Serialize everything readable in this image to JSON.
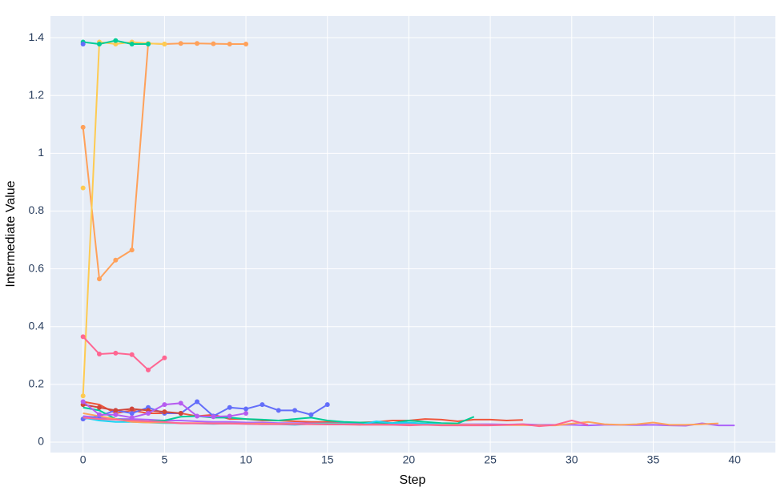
{
  "chart_data": {
    "type": "line",
    "x_label": "Step",
    "y_label": "Intermediate Value",
    "xlim": [
      -2,
      42.5
    ],
    "ylim": [
      -0.036,
      1.475
    ],
    "xticks": [
      0,
      5,
      10,
      15,
      20,
      25,
      30,
      35,
      40
    ],
    "yticks": [
      0,
      0.2,
      0.4,
      0.6,
      0.8,
      1,
      1.2,
      1.4
    ],
    "grid": true,
    "background": "#e5ecf6",
    "series": [
      {
        "color": "#FFA15A",
        "x": [
          0,
          1,
          2,
          3,
          4,
          5,
          6,
          7,
          8,
          9,
          10
        ],
        "values": [
          1.09,
          0.565,
          0.63,
          0.665,
          1.38,
          1.378,
          1.38,
          1.38,
          1.379,
          1.378,
          1.378
        ]
      },
      {
        "color": "#FECB52",
        "x": [
          0,
          1,
          2,
          3,
          4,
          5
        ],
        "values": [
          0.16,
          1.385,
          1.378,
          1.385,
          1.38,
          1.378
        ]
      },
      {
        "color": "#FECB52",
        "x": [
          0
        ],
        "values": [
          0.88
        ]
      },
      {
        "color": "#00cc96",
        "x": [
          0,
          1,
          2,
          3,
          4
        ],
        "values": [
          1.385,
          1.378,
          1.39,
          1.378,
          1.378
        ]
      },
      {
        "color": "#636efa",
        "x": [
          0
        ],
        "values": [
          1.378
        ]
      },
      {
        "color": "#FF6692",
        "x": [
          0,
          1,
          2,
          3,
          4,
          5
        ],
        "values": [
          0.365,
          0.305,
          0.308,
          0.303,
          0.25,
          0.292
        ]
      },
      {
        "color": "#EF553B",
        "x": [
          0,
          1,
          2,
          3,
          4,
          5,
          6,
          7,
          8,
          9,
          10,
          11,
          12,
          13,
          14,
          15,
          16,
          17,
          18,
          19,
          20,
          21,
          22,
          23,
          24,
          25,
          26,
          27
        ],
        "values": [
          0.14,
          0.13,
          0.1,
          0.11,
          0.1,
          0.1,
          0.1,
          0.09,
          0.095,
          0.08,
          0.08,
          0.075,
          0.075,
          0.072,
          0.07,
          0.07,
          0.068,
          0.068,
          0.07,
          0.075,
          0.075,
          0.08,
          0.078,
          0.072,
          0.078,
          0.078,
          0.075,
          0.077
        ]
      },
      {
        "color": "#ab63fa",
        "x": [
          0,
          1,
          2,
          3,
          4,
          5,
          6,
          7,
          8,
          9,
          10,
          11,
          12,
          13,
          14,
          15,
          16,
          17,
          18,
          19,
          20,
          21,
          22,
          23,
          24,
          25,
          26,
          27,
          28,
          29,
          30,
          31,
          32,
          33,
          34,
          35,
          36,
          37,
          38,
          39,
          40
        ],
        "values": [
          0.09,
          0.085,
          0.08,
          0.08,
          0.078,
          0.075,
          0.075,
          0.072,
          0.07,
          0.07,
          0.068,
          0.068,
          0.066,
          0.066,
          0.065,
          0.065,
          0.065,
          0.064,
          0.064,
          0.063,
          0.063,
          0.063,
          0.062,
          0.062,
          0.062,
          0.062,
          0.061,
          0.062,
          0.06,
          0.06,
          0.06,
          0.058,
          0.06,
          0.06,
          0.059,
          0.06,
          0.058,
          0.057,
          0.065,
          0.058,
          0.058
        ]
      },
      {
        "color": "#636efa",
        "x": [
          0,
          1,
          2,
          3,
          4,
          5,
          6,
          7,
          8,
          9,
          10,
          11,
          12,
          13,
          14,
          15
        ],
        "values": [
          0.08,
          0.09,
          0.11,
          0.1,
          0.12,
          0.1,
          0.1,
          0.14,
          0.09,
          0.12,
          0.115,
          0.13,
          0.11,
          0.11,
          0.095,
          0.13
        ]
      },
      {
        "color": "#00cc96",
        "x": [
          0,
          1,
          2,
          3,
          4,
          5,
          6,
          7,
          8,
          9,
          10,
          11,
          12,
          13,
          14,
          15,
          16,
          17,
          18,
          19,
          20,
          21,
          22,
          23,
          24
        ],
        "values": [
          0.12,
          0.11,
          0.08,
          0.075,
          0.072,
          0.075,
          0.088,
          0.09,
          0.085,
          0.085,
          0.08,
          0.078,
          0.075,
          0.08,
          0.085,
          0.075,
          0.07,
          0.068,
          0.068,
          0.066,
          0.075,
          0.07,
          0.066,
          0.065,
          0.088
        ]
      },
      {
        "color": "#19d3f3",
        "x": [
          0,
          1,
          2,
          3,
          4,
          5,
          6,
          7,
          8,
          9,
          10,
          11,
          12,
          13,
          14,
          15,
          16,
          17,
          18,
          19,
          20,
          21,
          22,
          23
        ],
        "values": [
          0.085,
          0.075,
          0.07,
          0.07,
          0.068,
          0.066,
          0.066,
          0.065,
          0.063,
          0.065,
          0.063,
          0.062,
          0.062,
          0.06,
          0.063,
          0.065,
          0.064,
          0.06,
          0.072,
          0.066,
          0.068,
          0.064,
          0.062,
          0.058
        ]
      },
      {
        "color": "#FFA15A",
        "x": [
          0,
          1,
          2,
          3,
          4,
          5,
          6,
          7,
          8,
          9,
          10,
          11,
          12,
          13,
          14,
          15,
          16,
          17,
          18,
          19,
          20,
          21,
          22,
          23,
          24,
          25,
          26,
          27,
          28,
          29,
          30,
          31,
          32,
          33,
          34,
          35,
          36,
          37,
          38,
          39
        ],
        "values": [
          0.1,
          0.09,
          0.08,
          0.07,
          0.068,
          0.068,
          0.066,
          0.066,
          0.065,
          0.065,
          0.064,
          0.064,
          0.063,
          0.063,
          0.062,
          0.062,
          0.062,
          0.061,
          0.061,
          0.06,
          0.06,
          0.06,
          0.06,
          0.06,
          0.06,
          0.059,
          0.059,
          0.059,
          0.058,
          0.058,
          0.064,
          0.07,
          0.062,
          0.06,
          0.062,
          0.068,
          0.06,
          0.06,
          0.062,
          0.065
        ]
      },
      {
        "color": "#FF6692",
        "x": [
          0,
          1,
          2,
          3,
          4,
          5,
          6,
          7,
          8,
          9,
          10,
          11,
          12,
          13,
          14,
          15,
          16,
          17,
          18,
          19,
          20,
          21,
          22,
          23,
          24,
          25,
          26,
          27,
          28,
          29,
          30,
          31
        ],
        "values": [
          0.085,
          0.08,
          0.078,
          0.075,
          0.072,
          0.07,
          0.065,
          0.065,
          0.064,
          0.064,
          0.063,
          0.062,
          0.062,
          0.062,
          0.062,
          0.061,
          0.061,
          0.06,
          0.06,
          0.06,
          0.058,
          0.06,
          0.058,
          0.058,
          0.058,
          0.058,
          0.06,
          0.062,
          0.055,
          0.06,
          0.075,
          0.06
        ]
      },
      {
        "color": "#d0463a",
        "x": [
          0,
          1,
          2,
          3,
          4,
          5,
          6
        ],
        "values": [
          0.13,
          0.12,
          0.11,
          0.115,
          0.11,
          0.105,
          0.1
        ]
      },
      {
        "color": "#b65cf0",
        "x": [
          0,
          1,
          2,
          3,
          4,
          5,
          6,
          7,
          8,
          9,
          10
        ],
        "values": [
          0.14,
          0.095,
          0.095,
          0.085,
          0.1,
          0.13,
          0.135,
          0.09,
          0.088,
          0.09,
          0.1
        ]
      }
    ]
  }
}
